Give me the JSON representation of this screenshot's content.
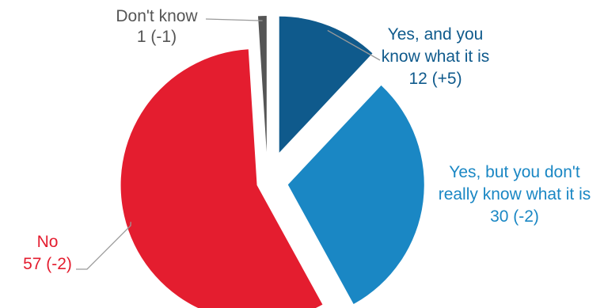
{
  "chart_data": {
    "type": "pie",
    "title": "",
    "slices": [
      {
        "label_lines": [
          "Yes, and you",
          "know what it is"
        ],
        "value": 12,
        "value_text": "12 (+5)",
        "color": "#0f5a8c"
      },
      {
        "label_lines": [
          "Yes, but you don't",
          "really know what it is"
        ],
        "value": 30,
        "value_text": "30 (-2)",
        "color": "#1a87c4"
      },
      {
        "label_lines": [
          "No"
        ],
        "value": 57,
        "value_text": "57 (-2)",
        "color": "#e41d2f"
      },
      {
        "label_lines": [
          "Don't know"
        ],
        "value": 1,
        "value_text": "1 (-1)",
        "color": "#555555"
      }
    ]
  }
}
